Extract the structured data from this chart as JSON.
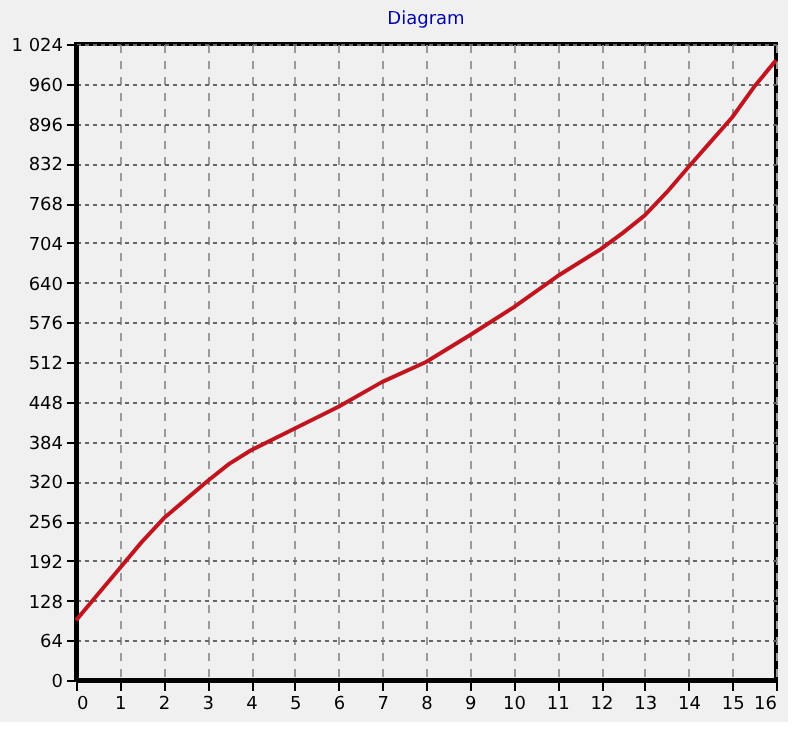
{
  "chart_data": {
    "type": "line",
    "title": "Diagram",
    "x": [
      0,
      0.5,
      1,
      1.5,
      2,
      2.5,
      3,
      3.5,
      4,
      5,
      6,
      7,
      8,
      9,
      10,
      11,
      12,
      12.5,
      13,
      13.5,
      14,
      14.5,
      15,
      15.5,
      16
    ],
    "series": [
      {
        "color": "#c0141e",
        "values": [
          96,
          138,
          180,
          222,
          260,
          290,
          320,
          348,
          370,
          405,
          440,
          480,
          512,
          555,
          600,
          650,
          694,
          720,
          748,
          785,
          826,
          866,
          906,
          955,
          998
        ]
      }
    ],
    "xlim": [
      0,
      16
    ],
    "xticks": [
      0,
      1,
      2,
      3,
      4,
      5,
      6,
      7,
      8,
      9,
      10,
      11,
      12,
      13,
      14,
      15,
      16
    ],
    "ylim": [
      0,
      1024
    ],
    "yticks": [
      0,
      64,
      128,
      192,
      256,
      320,
      384,
      448,
      512,
      576,
      640,
      704,
      768,
      832,
      896,
      960,
      {
        "value": 1024,
        "label": "1 024"
      }
    ],
    "grid": true,
    "line_style": "solid",
    "marker": "none"
  }
}
